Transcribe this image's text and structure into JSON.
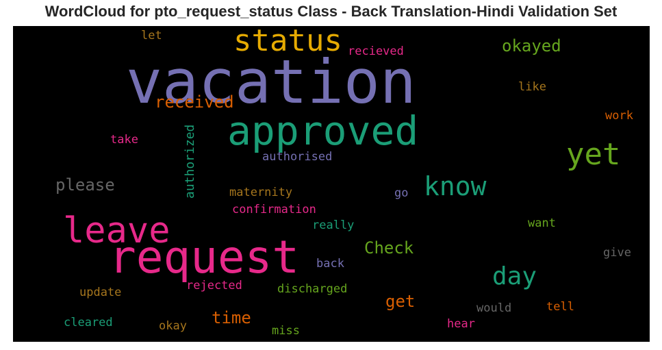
{
  "chart_data": {
    "type": "wordcloud",
    "title": "WordCloud for pto_request_status Class - Back Translation-Hindi Validation Set",
    "background": "#000000",
    "words": [
      {
        "text": "vacation",
        "color": "#7570b3"
      },
      {
        "text": "request",
        "color": "#e7298a"
      },
      {
        "text": "approved",
        "color": "#1b9e77"
      },
      {
        "text": "leave",
        "color": "#e7298a"
      },
      {
        "text": "status",
        "color": "#e6ab02"
      },
      {
        "text": "yet",
        "color": "#66a61e"
      },
      {
        "text": "know",
        "color": "#1b9e77"
      },
      {
        "text": "day",
        "color": "#1b9e77"
      },
      {
        "text": "received",
        "color": "#d95f02"
      },
      {
        "text": "okayed",
        "color": "#66a61e"
      },
      {
        "text": "Check",
        "color": "#66a61e"
      },
      {
        "text": "please",
        "color": "#666666"
      },
      {
        "text": "get",
        "color": "#d95f02"
      },
      {
        "text": "time",
        "color": "#d95f02"
      },
      {
        "text": "authorized",
        "color": "#1b9e77"
      },
      {
        "text": "recieved",
        "color": "#e7298a"
      },
      {
        "text": "like",
        "color": "#a6761d"
      },
      {
        "text": "let",
        "color": "#a6761d"
      },
      {
        "text": "work",
        "color": "#d95f02"
      },
      {
        "text": "take",
        "color": "#e7298a"
      },
      {
        "text": "authorised",
        "color": "#7570b3"
      },
      {
        "text": "maternity",
        "color": "#a6761d"
      },
      {
        "text": "go",
        "color": "#7570b3"
      },
      {
        "text": "confirmation",
        "color": "#e7298a"
      },
      {
        "text": "really",
        "color": "#1b9e77"
      },
      {
        "text": "want",
        "color": "#66a61e"
      },
      {
        "text": "give",
        "color": "#666666"
      },
      {
        "text": "back",
        "color": "#7570b3"
      },
      {
        "text": "rejected",
        "color": "#e7298a"
      },
      {
        "text": "discharged",
        "color": "#66a61e"
      },
      {
        "text": "update",
        "color": "#a6761d"
      },
      {
        "text": "would",
        "color": "#666666"
      },
      {
        "text": "tell",
        "color": "#d95f02"
      },
      {
        "text": "hear",
        "color": "#e7298a"
      },
      {
        "text": "cleared",
        "color": "#1b9e77"
      },
      {
        "text": "okay",
        "color": "#a6761d"
      },
      {
        "text": "miss",
        "color": "#66a61e"
      }
    ]
  }
}
